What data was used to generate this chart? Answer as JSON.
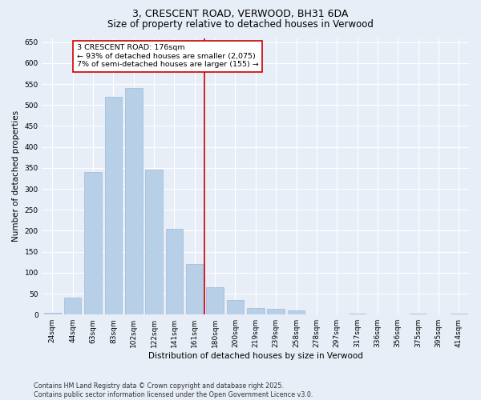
{
  "title": "3, CRESCENT ROAD, VERWOOD, BH31 6DA",
  "subtitle": "Size of property relative to detached houses in Verwood",
  "xlabel": "Distribution of detached houses by size in Verwood",
  "ylabel": "Number of detached properties",
  "categories": [
    "24sqm",
    "44sqm",
    "63sqm",
    "83sqm",
    "102sqm",
    "122sqm",
    "141sqm",
    "161sqm",
    "180sqm",
    "200sqm",
    "219sqm",
    "239sqm",
    "258sqm",
    "278sqm",
    "297sqm",
    "317sqm",
    "336sqm",
    "356sqm",
    "375sqm",
    "395sqm",
    "414sqm"
  ],
  "values": [
    5,
    40,
    340,
    520,
    540,
    345,
    205,
    120,
    65,
    35,
    15,
    13,
    10,
    0,
    0,
    3,
    0,
    0,
    3,
    0,
    3
  ],
  "bar_color": "#b8cfe8",
  "bar_edge_color": "#a0b8d8",
  "vline_color": "#cc0000",
  "vline_x": 7.5,
  "annotation_text": "3 CRESCENT ROAD: 176sqm\n← 93% of detached houses are smaller (2,075)\n7% of semi-detached houses are larger (155) →",
  "annotation_box_edgecolor": "#cc0000",
  "ylim": [
    0,
    660
  ],
  "yticks": [
    0,
    50,
    100,
    150,
    200,
    250,
    300,
    350,
    400,
    450,
    500,
    550,
    600,
    650
  ],
  "background_color": "#e8eef8",
  "plot_bg_color": "#e8eef8",
  "footer_line1": "Contains HM Land Registry data © Crown copyright and database right 2025.",
  "footer_line2": "Contains public sector information licensed under the Open Government Licence v3.0.",
  "title_fontsize": 9,
  "subtitle_fontsize": 8.5,
  "axis_label_fontsize": 7.5,
  "tick_fontsize": 6.5,
  "annotation_fontsize": 6.8,
  "footer_fontsize": 5.8
}
